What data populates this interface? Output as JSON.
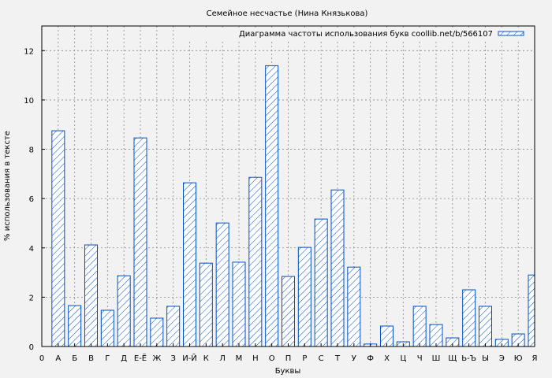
{
  "chart_data": {
    "type": "bar",
    "title": "Семейное несчастье (Нина Князькова)",
    "xlabel": "Буквы",
    "ylabel": "% использования в тексте",
    "legend": {
      "label": "Диаграмма частоты использования букв coollib.net/b/566107",
      "placement": "top-right"
    },
    "x_origin_label": "0",
    "categories": [
      "А",
      "Б",
      "В",
      "Г",
      "Д",
      "Е-Ё",
      "Ж",
      "З",
      "И-Й",
      "К",
      "Л",
      "М",
      "Н",
      "О",
      "П",
      "Р",
      "С",
      "Т",
      "У",
      "Ф",
      "Х",
      "Ц",
      "Ч",
      "Ш",
      "Щ",
      "Ь-Ъ",
      "Ы",
      "Э",
      "Ю",
      "Я"
    ],
    "values": [
      8.75,
      1.66,
      4.12,
      1.47,
      2.87,
      8.46,
      1.15,
      1.63,
      6.64,
      3.38,
      5.01,
      3.42,
      6.86,
      11.39,
      2.84,
      4.02,
      5.17,
      6.35,
      3.22,
      0.1,
      0.83,
      0.19,
      1.63,
      0.89,
      0.35,
      2.3,
      1.63,
      0.29,
      0.51,
      2.9
    ],
    "ylim": [
      0,
      13
    ],
    "yticks": [
      0,
      2,
      4,
      6,
      8,
      10,
      12
    ],
    "grid": true,
    "bar_color": "#0050c8",
    "bar_pattern": "diagonal-hatch"
  }
}
